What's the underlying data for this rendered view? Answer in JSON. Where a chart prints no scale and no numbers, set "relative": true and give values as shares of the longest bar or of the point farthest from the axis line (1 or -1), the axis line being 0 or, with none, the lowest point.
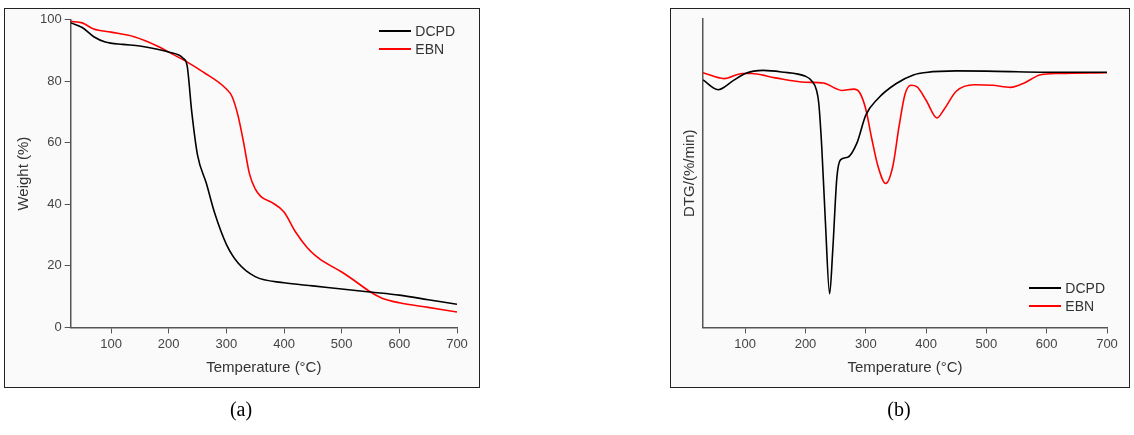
{
  "chart_data": [
    {
      "type": "line",
      "xlabel": "Temperature (°C)",
      "ylabel": "Weight (%)",
      "xlim": [
        30,
        700
      ],
      "xticks": [
        100,
        200,
        300,
        400,
        500,
        600,
        700
      ],
      "ylim": [
        0,
        100
      ],
      "yticks": [
        0,
        20,
        40,
        60,
        80,
        100
      ],
      "grid": false,
      "legend": "top right",
      "annotations": [
        "(a)"
      ],
      "series": [
        {
          "name": "DCPD",
          "color": "#000000",
          "x": [
            30,
            50,
            70,
            90,
            120,
            150,
            200,
            225,
            232,
            240,
            250,
            265,
            280,
            300,
            320,
            350,
            400,
            450,
            500,
            550,
            600,
            650,
            700
          ],
          "values": [
            99,
            97.5,
            94.5,
            92.8,
            92,
            91.5,
            89.5,
            87.5,
            85,
            70,
            56,
            47,
            37,
            27,
            21,
            16.5,
            14.5,
            13.5,
            12.5,
            11.5,
            10.5,
            9,
            7.5
          ]
        },
        {
          "name": "EBN",
          "color": "#ff0000",
          "x": [
            30,
            50,
            70,
            100,
            140,
            180,
            200,
            230,
            260,
            300,
            310,
            320,
            330,
            340,
            350,
            360,
            380,
            400,
            420,
            440,
            460,
            500,
            520,
            550,
            570,
            600,
            650,
            700
          ],
          "values": [
            99.5,
            99,
            97,
            96,
            94.5,
            91.5,
            89.5,
            86.5,
            83,
            77.5,
            75,
            69,
            60,
            50,
            45,
            42.5,
            40.5,
            37.5,
            31,
            26,
            22.5,
            18,
            15.5,
            11.5,
            9.5,
            8,
            6.5,
            5
          ]
        }
      ]
    },
    {
      "type": "line",
      "relative": true,
      "tick_labels": "x",
      "xlabel": "Temperature (°C)",
      "ylabel": "DTG/(%/min)",
      "xlim": [
        30,
        700
      ],
      "xticks": [
        100,
        200,
        300,
        400,
        500,
        600,
        700
      ],
      "grid": false,
      "legend": "bottom right",
      "annotations": [
        "(b)"
      ],
      "series": [
        {
          "name": "DCPD",
          "color": "#000000",
          "x": [
            30,
            55,
            80,
            100,
            130,
            160,
            200,
            210,
            218,
            222,
            227,
            233,
            240,
            245,
            252,
            258,
            270,
            285,
            300,
            320,
            350,
            380,
            400,
            450,
            500,
            600,
            700
          ],
          "values": [
            0.963,
            0.925,
            0.96,
            0.988,
            1,
            0.994,
            0.977,
            0.96,
            0.925,
            0.872,
            0.699,
            0.41,
            0.131,
            0.293,
            0.583,
            0.652,
            0.662,
            0.716,
            0.826,
            0.89,
            0.948,
            0.983,
            0.992,
            0.998,
            0.997,
            0.993,
            0.993
          ]
        },
        {
          "name": "EBN",
          "color": "#ff0000",
          "x": [
            30,
            65,
            95,
            110,
            150,
            200,
            230,
            250,
            260,
            280,
            290,
            300,
            310,
            320,
            333,
            345,
            355,
            365,
            375,
            385,
            400,
            418,
            430,
            450,
            480,
            510,
            540,
            560,
            590,
            620,
            700
          ],
          "values": [
            0.991,
            0.968,
            0.988,
            0.988,
            0.971,
            0.954,
            0.951,
            0.93,
            0.922,
            0.927,
            0.913,
            0.849,
            0.733,
            0.629,
            0.56,
            0.629,
            0.78,
            0.907,
            0.942,
            0.936,
            0.884,
            0.815,
            0.849,
            0.919,
            0.944,
            0.942,
            0.934,
            0.948,
            0.983,
            0.988,
            0.991
          ]
        }
      ]
    }
  ]
}
